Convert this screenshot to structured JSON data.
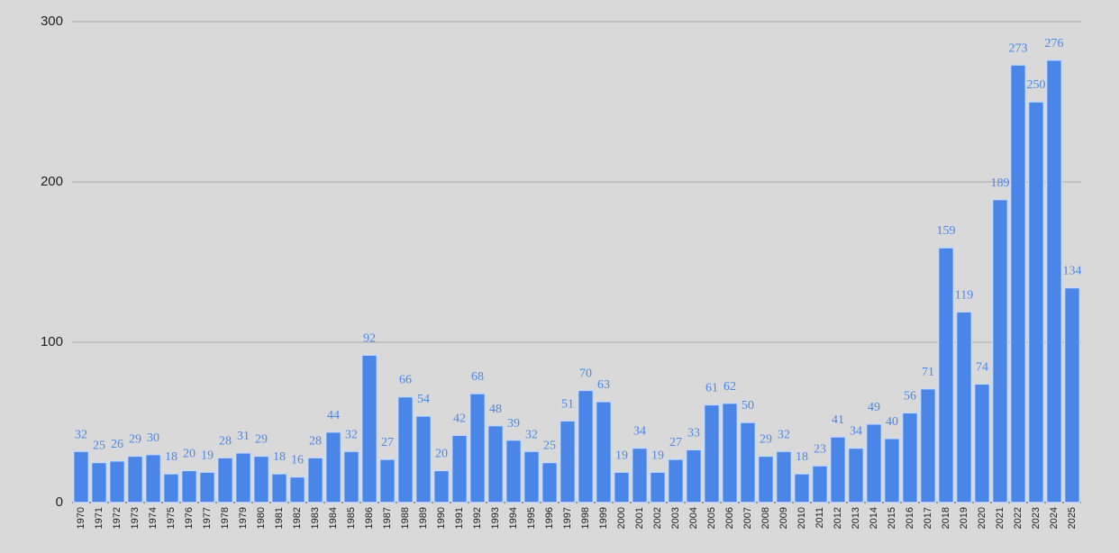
{
  "chart_data": {
    "type": "bar",
    "categories": [
      "1970",
      "1971",
      "1972",
      "1973",
      "1974",
      "1975",
      "1976",
      "1977",
      "1978",
      "1979",
      "1980",
      "1981",
      "1982",
      "1983",
      "1984",
      "1985",
      "1986",
      "1987",
      "1988",
      "1989",
      "1990",
      "1991",
      "1992",
      "1993",
      "1994",
      "1995",
      "1996",
      "1997",
      "1998",
      "1999",
      "2000",
      "2001",
      "2002",
      "2003",
      "2004",
      "2005",
      "2006",
      "2007",
      "2008",
      "2009",
      "2010",
      "2011",
      "2012",
      "2013",
      "2014",
      "2015",
      "2016",
      "2017",
      "2018",
      "2019",
      "2020",
      "2021",
      "2022",
      "2023",
      "2024",
      "2025"
    ],
    "values": [
      32,
      25,
      26,
      29,
      30,
      18,
      20,
      19,
      28,
      31,
      29,
      18,
      16,
      28,
      44,
      32,
      92,
      27,
      66,
      54,
      20,
      42,
      68,
      48,
      39,
      32,
      25,
      51,
      70,
      63,
      19,
      34,
      19,
      27,
      33,
      61,
      62,
      50,
      29,
      32,
      18,
      23,
      41,
      34,
      49,
      40,
      56,
      71,
      159,
      119,
      74,
      189,
      273,
      250,
      276,
      134
    ],
    "color": "#4a86e8",
    "ylim": [
      0,
      300
    ],
    "yticks": [
      0,
      100,
      200,
      300
    ],
    "grid": true
  }
}
